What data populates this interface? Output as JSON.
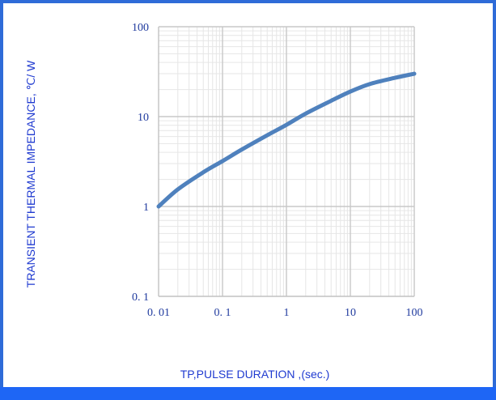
{
  "chart_data": {
    "type": "line",
    "title": "",
    "xlabel": "TP,PULSE DURATION ,(sec.)",
    "ylabel": "TRANSIENT THERMAL IMPEDANCE, ℃/ W",
    "x_scale": "log",
    "y_scale": "log",
    "xlim": [
      0.01,
      100
    ],
    "ylim": [
      0.1,
      100
    ],
    "x_ticks": [
      "0. 01",
      "0. 1",
      "1",
      "10",
      "100"
    ],
    "y_ticks": [
      "0. 1",
      "1",
      "10",
      "100"
    ],
    "grid": true,
    "series": [
      {
        "x": [
          0.01,
          0.02,
          0.05,
          0.1,
          0.2,
          0.5,
          1,
          2,
          5,
          10,
          20,
          50,
          100
        ],
        "y": [
          1.0,
          1.55,
          2.4,
          3.2,
          4.3,
          6.2,
          8.1,
          10.8,
          15.0,
          19.0,
          23.0,
          27.0,
          30.0
        ]
      }
    ],
    "colors": {
      "series": "#4F81BD",
      "tick_text": "#1F3A9E",
      "axis_title_text": "#1F3AD0",
      "frame": "#2E6BD8",
      "bottom_bar": "#1E66F5",
      "grid_major": "#C8C8C8",
      "grid_minor": "#E6E6E6"
    }
  }
}
